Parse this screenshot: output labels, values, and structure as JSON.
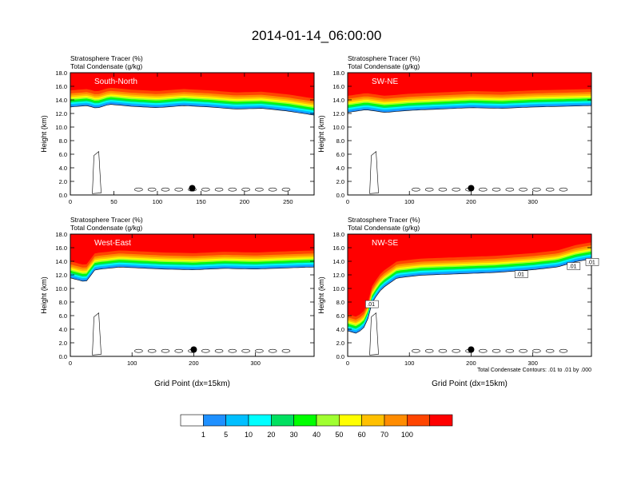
{
  "title": "2014-01-14_06:00:00",
  "chart_data": [
    {
      "type": "heatmap",
      "label": "South-North",
      "left_title_1": "Stratosphere Tracer   (%)",
      "left_title_2": "Total Condensate   (g/kg)",
      "ylabel": "Height (km)",
      "xlabel": "",
      "xlim": [
        0,
        280
      ],
      "xticks": [
        0,
        50,
        100,
        150,
        200,
        250
      ],
      "ylim": [
        0,
        18
      ],
      "yticks": [
        "0.0",
        "2.0",
        "4.0",
        "6.0",
        "8.0",
        "10.0",
        "12.0",
        "14.0",
        "16.0",
        "18.0"
      ],
      "tracer_top_km": 18,
      "tracer_base_profile": [
        [
          0,
          15.4
        ],
        [
          20,
          15.6
        ],
        [
          30,
          15.2
        ],
        [
          45,
          15.8
        ],
        [
          70,
          15.5
        ],
        [
          100,
          15.3
        ],
        [
          130,
          15.6
        ],
        [
          160,
          15.4
        ],
        [
          190,
          15.1
        ],
        [
          220,
          15.2
        ],
        [
          250,
          14.8
        ],
        [
          280,
          14.2
        ]
      ],
      "marker": {
        "x": 140,
        "y": 1.0
      }
    },
    {
      "type": "heatmap",
      "label": "SW-NE",
      "left_title_1": "Stratosphere Tracer   (%)",
      "left_title_2": "Total Condensate   (g/kg)",
      "ylabel": "Height (km)",
      "xlabel": "",
      "xlim": [
        0,
        395
      ],
      "xticks": [
        0,
        100,
        200,
        300
      ],
      "ylim": [
        0,
        18
      ],
      "yticks": [
        "0.0",
        "2.0",
        "4.0",
        "6.0",
        "8.0",
        "10.0",
        "12.0",
        "14.0",
        "16.0",
        "18.0"
      ],
      "tracer_top_km": 18,
      "tracer_base_profile": [
        [
          0,
          14.6
        ],
        [
          30,
          15.0
        ],
        [
          60,
          14.6
        ],
        [
          100,
          14.9
        ],
        [
          150,
          15.1
        ],
        [
          200,
          15.3
        ],
        [
          250,
          15.2
        ],
        [
          300,
          15.4
        ],
        [
          350,
          15.5
        ],
        [
          395,
          15.6
        ]
      ],
      "marker": {
        "x": 200,
        "y": 1.0
      }
    },
    {
      "type": "heatmap",
      "label": "West-East",
      "left_title_1": "Stratosphere Tracer   (%)",
      "left_title_2": "Total Condensate   (g/kg)",
      "ylabel": "Height (km)",
      "xlabel": "Grid Point (dx=15km)",
      "xlim": [
        0,
        395
      ],
      "xticks": [
        0,
        100,
        200,
        300
      ],
      "ylim": [
        0,
        18
      ],
      "yticks": [
        "0.0",
        "2.0",
        "4.0",
        "6.0",
        "8.0",
        "10.0",
        "12.0",
        "14.0",
        "16.0",
        "18.0"
      ],
      "tracer_top_km": 18,
      "tracer_base_profile": [
        [
          0,
          14.0
        ],
        [
          25,
          13.4
        ],
        [
          40,
          15.2
        ],
        [
          80,
          15.6
        ],
        [
          150,
          15.3
        ],
        [
          200,
          15.2
        ],
        [
          250,
          15.4
        ],
        [
          300,
          15.3
        ],
        [
          360,
          15.5
        ],
        [
          395,
          15.6
        ]
      ],
      "marker": {
        "x": 200,
        "y": 1.0
      }
    },
    {
      "type": "heatmap",
      "label": "NW-SE",
      "left_title_1": "Stratosphere Tracer   (%)",
      "left_title_2": "Total Condensate   (g/kg)",
      "ylabel": "Height (km)",
      "xlabel": "Grid Point (dx=15km)",
      "xlim": [
        0,
        395
      ],
      "xticks": [
        0,
        100,
        200,
        300
      ],
      "ylim": [
        0,
        18
      ],
      "yticks": [
        "0.0",
        "2.0",
        "4.0",
        "6.0",
        "8.0",
        "10.0",
        "12.0",
        "14.0",
        "16.0",
        "18.0"
      ],
      "tracer_top_km": 18,
      "tracer_base_profile": [
        [
          0,
          6.2
        ],
        [
          15,
          5.8
        ],
        [
          30,
          7.0
        ],
        [
          40,
          10.5
        ],
        [
          55,
          12.4
        ],
        [
          80,
          14.0
        ],
        [
          120,
          14.4
        ],
        [
          180,
          14.6
        ],
        [
          240,
          14.8
        ],
        [
          300,
          15.2
        ],
        [
          340,
          15.6
        ],
        [
          370,
          16.4
        ],
        [
          395,
          16.8
        ]
      ],
      "marker": {
        "x": 200,
        "y": 1.0
      },
      "contour_labels": [
        ".01",
        ".01",
        ".01",
        ".01"
      ],
      "footnote": "Total Condensate Contours: .01 to .01 by .000"
    }
  ],
  "colorbar": {
    "labels": [
      "1",
      "5",
      "10",
      "20",
      "30",
      "40",
      "50",
      "60",
      "70",
      "100"
    ],
    "colors": [
      "#ffffff",
      "#1e90ff",
      "#00bfff",
      "#00ffff",
      "#00e060",
      "#00ff00",
      "#a0ff30",
      "#ffff00",
      "#ffc000",
      "#ff8c00",
      "#ff4500",
      "#ff0000"
    ]
  }
}
